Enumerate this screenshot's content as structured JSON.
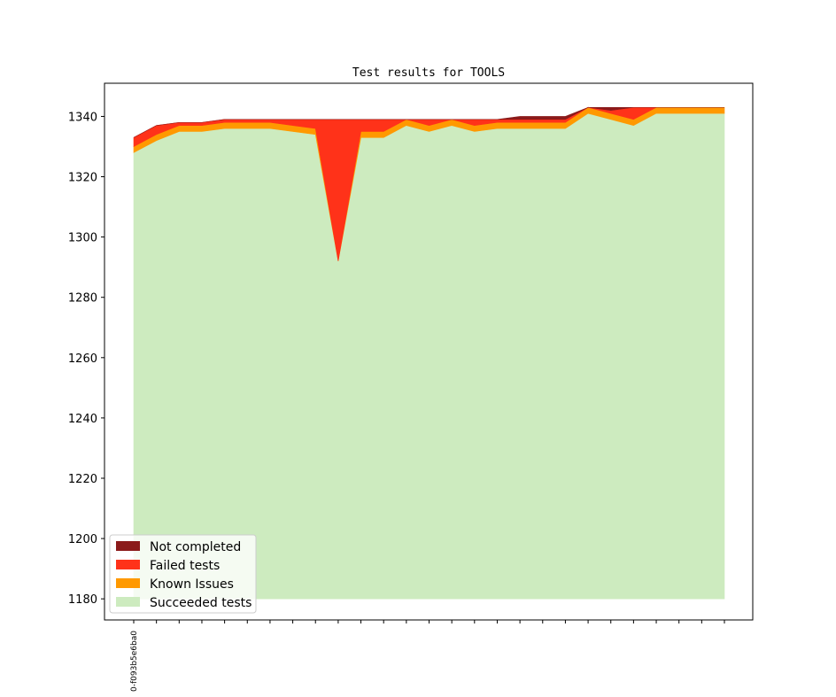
{
  "chart_data": {
    "type": "area",
    "title": "Test results for TOOLS",
    "xlabel": "",
    "ylabel": "",
    "x_tick_labels": [
      "0-f093b5e6ba0"
    ],
    "ylim": [
      1173,
      1351
    ],
    "yticks": [
      1180,
      1200,
      1220,
      1240,
      1260,
      1280,
      1300,
      1320,
      1340
    ],
    "stack_base": 1180,
    "legend_position": "lower-left",
    "grid": false,
    "x_count": 27,
    "series": [
      {
        "name": "Succeeded tests",
        "color": "#cdebbf",
        "values": [
          148,
          152,
          155,
          155,
          156,
          156,
          156,
          155,
          154,
          112,
          153,
          153,
          157,
          155,
          157,
          155,
          156,
          156,
          156,
          156,
          161,
          159,
          157,
          161,
          161,
          161,
          161
        ]
      },
      {
        "name": "Known Issues",
        "color": "#ff9900",
        "values": [
          2,
          2,
          2,
          2,
          2,
          2,
          2,
          2,
          2,
          0,
          2,
          2,
          2,
          2,
          2,
          2,
          2,
          2,
          2,
          2,
          2,
          2,
          2,
          2,
          2,
          2,
          2
        ]
      },
      {
        "name": "Failed tests",
        "color": "#ff3219",
        "values": [
          3,
          3,
          1,
          1,
          1,
          1,
          1,
          2,
          3,
          47,
          4,
          4,
          0,
          2,
          0,
          2,
          1,
          1,
          1,
          1,
          0,
          1,
          4,
          0,
          0,
          0,
          0
        ]
      },
      {
        "name": "Not completed",
        "color": "#8b1a1a",
        "values": [
          0,
          0,
          0,
          0,
          0,
          0,
          0,
          0,
          0,
          0,
          0,
          0,
          0,
          0,
          0,
          0,
          0,
          1,
          1,
          1,
          0,
          1,
          0,
          0,
          0,
          0,
          0
        ]
      }
    ],
    "legend_order": [
      "Not completed",
      "Failed tests",
      "Known Issues",
      "Succeeded tests"
    ]
  }
}
